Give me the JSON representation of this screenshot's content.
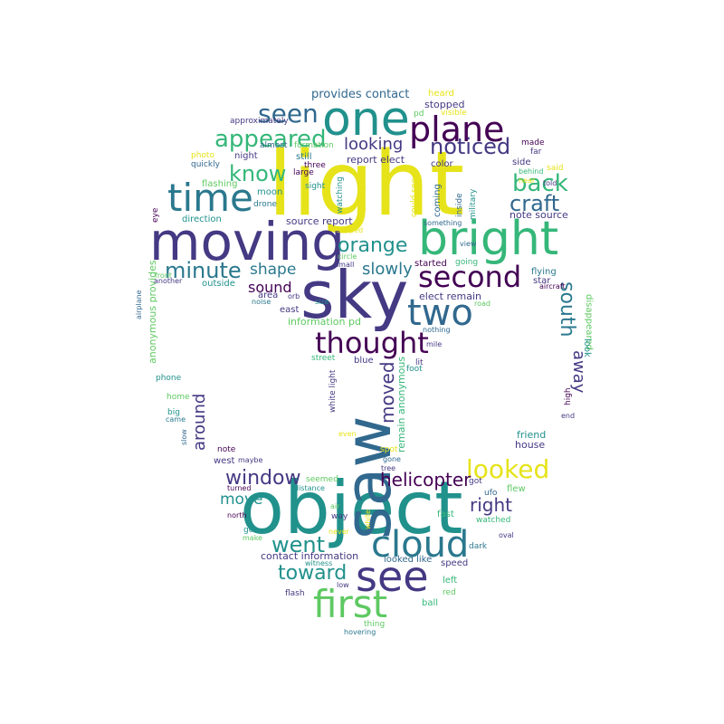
{
  "palette": {
    "yellow": "#e6e31a",
    "lime": "#8fd744",
    "green": "#5ec962",
    "seagreen": "#35b779",
    "teal": "#21918c",
    "cyan": "#2a788e",
    "blue": "#31688e",
    "indigo": "#443983",
    "purple": "#440154"
  },
  "words": [
    {
      "text": "light",
      "color": "yellow"
    },
    {
      "text": "object",
      "color": "teal"
    },
    {
      "text": "moving",
      "color": "indigo"
    },
    {
      "text": "saw",
      "color": "blue"
    },
    {
      "text": "sky",
      "color": "indigo"
    },
    {
      "text": "bright",
      "color": "seagreen"
    },
    {
      "text": "one",
      "color": "teal"
    },
    {
      "text": "plane",
      "color": "purple"
    },
    {
      "text": "time",
      "color": "cyan"
    },
    {
      "text": "see",
      "color": "indigo"
    },
    {
      "text": "first",
      "color": "green"
    },
    {
      "text": "cloud",
      "color": "cyan"
    },
    {
      "text": "two",
      "color": "blue"
    },
    {
      "text": "second",
      "color": "purple"
    },
    {
      "text": "thought",
      "color": "purple"
    },
    {
      "text": "seen",
      "color": "blue"
    },
    {
      "text": "appeared",
      "color": "seagreen"
    },
    {
      "text": "noticed",
      "color": "indigo"
    },
    {
      "text": "back",
      "color": "seagreen"
    },
    {
      "text": "craft",
      "color": "blue"
    },
    {
      "text": "know",
      "color": "seagreen"
    },
    {
      "text": "minute",
      "color": "cyan"
    },
    {
      "text": "orange",
      "color": "teal"
    },
    {
      "text": "looked",
      "color": "yellow"
    },
    {
      "text": "window",
      "color": "indigo"
    },
    {
      "text": "went",
      "color": "teal"
    },
    {
      "text": "toward",
      "color": "teal"
    },
    {
      "text": "moved",
      "color": "indigo"
    },
    {
      "text": "south",
      "color": "cyan"
    },
    {
      "text": "helicopter",
      "color": "purple"
    },
    {
      "text": "right",
      "color": "indigo"
    },
    {
      "text": "looking",
      "color": "indigo"
    },
    {
      "text": "slowly",
      "color": "cyan"
    },
    {
      "text": "shape",
      "color": "cyan"
    },
    {
      "text": "sound",
      "color": "purple"
    },
    {
      "text": "around",
      "color": "indigo"
    },
    {
      "text": "away",
      "color": "indigo"
    },
    {
      "text": "move",
      "color": "teal"
    },
    {
      "text": "provides contact",
      "color": "blue"
    },
    {
      "text": "report elect",
      "color": "indigo"
    },
    {
      "text": "note source",
      "color": "indigo"
    },
    {
      "text": "source report",
      "color": "indigo"
    },
    {
      "text": "information pd",
      "color": "green"
    },
    {
      "text": "elect remain",
      "color": "indigo"
    },
    {
      "text": "remain anonymous",
      "color": "seagreen"
    },
    {
      "text": "anonymous provides",
      "color": "green"
    },
    {
      "text": "contact information",
      "color": "indigo"
    },
    {
      "text": "looked like",
      "color": "blue"
    },
    {
      "text": "white light",
      "color": "indigo"
    },
    {
      "text": "stopped",
      "color": "indigo"
    },
    {
      "text": "heard",
      "color": "yellow"
    },
    {
      "text": "pd",
      "color": "green"
    },
    {
      "text": "visible",
      "color": "yellow"
    },
    {
      "text": "approximately",
      "color": "indigo"
    },
    {
      "text": "almost",
      "color": "blue"
    },
    {
      "text": "formation",
      "color": "green"
    },
    {
      "text": "made",
      "color": "purple"
    },
    {
      "text": "far",
      "color": "indigo"
    },
    {
      "text": "photo",
      "color": "yellow"
    },
    {
      "text": "night",
      "color": "indigo"
    },
    {
      "text": "still",
      "color": "cyan"
    },
    {
      "text": "color",
      "color": "indigo"
    },
    {
      "text": "side",
      "color": "indigo"
    },
    {
      "text": "behind",
      "color": "seagreen"
    },
    {
      "text": "said",
      "color": "yellow"
    },
    {
      "text": "quickly",
      "color": "blue"
    },
    {
      "text": "three",
      "color": "purple"
    },
    {
      "text": "large",
      "color": "purple"
    },
    {
      "text": "flashing",
      "color": "green"
    },
    {
      "text": "sight",
      "color": "teal"
    },
    {
      "text": "sighting",
      "color": "yellow"
    },
    {
      "text": "could see",
      "color": "yellow"
    },
    {
      "text": "coming",
      "color": "blue"
    },
    {
      "text": "inside",
      "color": "blue"
    },
    {
      "text": "told",
      "color": "indigo"
    },
    {
      "text": "moon",
      "color": "teal"
    },
    {
      "text": "drone",
      "color": "cyan"
    },
    {
      "text": "watching",
      "color": "teal"
    },
    {
      "text": "military",
      "color": "teal"
    },
    {
      "text": "eye",
      "color": "purple"
    },
    {
      "text": "direction",
      "color": "teal"
    },
    {
      "text": "shaped",
      "color": "yellow"
    },
    {
      "text": "something",
      "color": "blue"
    },
    {
      "text": "view",
      "color": "blue"
    },
    {
      "text": "circle",
      "color": "green"
    },
    {
      "text": "started",
      "color": "purple"
    },
    {
      "text": "going",
      "color": "seagreen"
    },
    {
      "text": "small",
      "color": "indigo"
    },
    {
      "text": "flying",
      "color": "cyan"
    },
    {
      "text": "star",
      "color": "indigo"
    },
    {
      "text": "outside",
      "color": "teal"
    },
    {
      "text": "another",
      "color": "indigo"
    },
    {
      "text": "airplane",
      "color": "blue"
    },
    {
      "text": "area",
      "color": "indigo"
    },
    {
      "text": "orb",
      "color": "indigo"
    },
    {
      "text": "noise",
      "color": "cyan"
    },
    {
      "text": "size",
      "color": "teal"
    },
    {
      "text": "east",
      "color": "indigo"
    },
    {
      "text": "road",
      "color": "green"
    },
    {
      "text": "disappeared",
      "color": "green"
    },
    {
      "text": "nothing",
      "color": "blue"
    },
    {
      "text": "mile",
      "color": "indigo"
    },
    {
      "text": "look",
      "color": "teal"
    },
    {
      "text": "street",
      "color": "seagreen"
    },
    {
      "text": "blue",
      "color": "indigo"
    },
    {
      "text": "lit",
      "color": "indigo"
    },
    {
      "text": "foot",
      "color": "teal"
    },
    {
      "text": "phone",
      "color": "teal"
    },
    {
      "text": "home",
      "color": "green"
    },
    {
      "text": "big",
      "color": "teal"
    },
    {
      "text": "came",
      "color": "cyan"
    },
    {
      "text": "slow",
      "color": "blue"
    },
    {
      "text": "end",
      "color": "indigo"
    },
    {
      "text": "high",
      "color": "purple"
    },
    {
      "text": "even",
      "color": "yellow"
    },
    {
      "text": "friend",
      "color": "teal"
    },
    {
      "text": "house",
      "color": "indigo"
    },
    {
      "text": "note",
      "color": "purple"
    },
    {
      "text": "maybe",
      "color": "indigo"
    },
    {
      "text": "west",
      "color": "indigo"
    },
    {
      "text": "spot",
      "color": "yellow"
    },
    {
      "text": "gone",
      "color": "blue"
    },
    {
      "text": "tree",
      "color": "indigo"
    },
    {
      "text": "seemed",
      "color": "green"
    },
    {
      "text": "flew",
      "color": "green"
    },
    {
      "text": "got",
      "color": "indigo"
    },
    {
      "text": "turned",
      "color": "purple"
    },
    {
      "text": "distance",
      "color": "teal"
    },
    {
      "text": "ufo",
      "color": "blue"
    },
    {
      "text": "air",
      "color": "green"
    },
    {
      "text": "way",
      "color": "indigo"
    },
    {
      "text": "fast",
      "color": "seagreen"
    },
    {
      "text": "watched",
      "color": "seagreen"
    },
    {
      "text": "north",
      "color": "purple"
    },
    {
      "text": "white",
      "color": "yellow"
    },
    {
      "text": "go",
      "color": "teal"
    },
    {
      "text": "never",
      "color": "yellow"
    },
    {
      "text": "oval",
      "color": "indigo"
    },
    {
      "text": "make",
      "color": "green"
    },
    {
      "text": "dark",
      "color": "cyan"
    },
    {
      "text": "witness",
      "color": "teal"
    },
    {
      "text": "speed",
      "color": "indigo"
    },
    {
      "text": "left",
      "color": "seagreen"
    },
    {
      "text": "low",
      "color": "indigo"
    },
    {
      "text": "flash",
      "color": "indigo"
    },
    {
      "text": "red",
      "color": "green"
    },
    {
      "text": "ball",
      "color": "seagreen"
    },
    {
      "text": "thing",
      "color": "green"
    },
    {
      "text": "hovering",
      "color": "cyan"
    },
    {
      "text": "front",
      "color": "green"
    },
    {
      "text": "aircraft",
      "color": "purple"
    },
    {
      "text": "near",
      "color": "yellow"
    }
  ]
}
